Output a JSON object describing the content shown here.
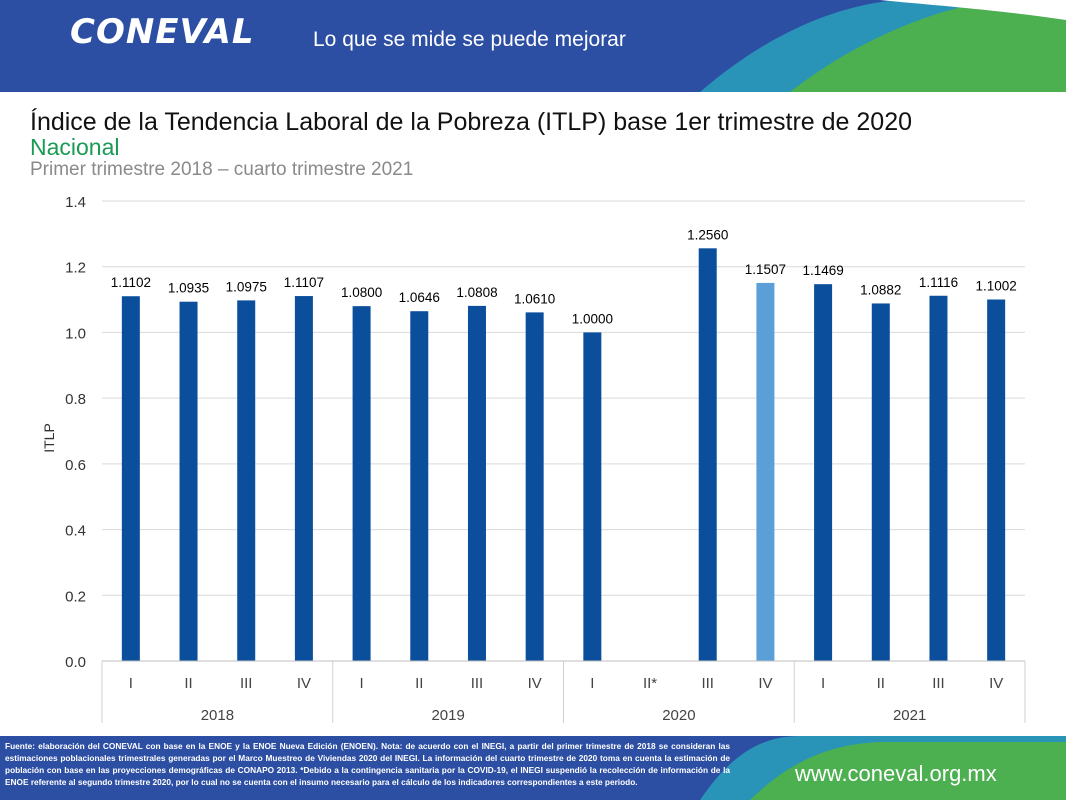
{
  "header": {
    "logo_text": "CONEVAL",
    "slogan": "Lo que se mide se puede mejorar"
  },
  "title": "Índice de la Tendencia Laboral de la Pobreza (ITLP) base 1er trimestre de 2020",
  "subtitle": "Nacional",
  "period": "Primer trimestre 2018 – cuarto trimestre 2021",
  "colors": {
    "bar": "#0b4f9c",
    "bar_highlight": "#5b9fd8",
    "header_blue": "#2c4ea3",
    "green_accent": "#4caf50",
    "subtitle_green": "#1a9a55"
  },
  "chart_data": {
    "type": "bar",
    "ylabel": "ITLP",
    "ylim": [
      0,
      1.4
    ],
    "yticks": [
      "0.0",
      "0.2",
      "0.4",
      "0.6",
      "0.8",
      "1.0",
      "1.2",
      "1.4"
    ],
    "grid": true,
    "groups": [
      "2018",
      "2019",
      "2020",
      "2021"
    ],
    "categories": [
      "I",
      "II",
      "III",
      "IV",
      "I",
      "II",
      "III",
      "IV",
      "I",
      "II*",
      "III",
      "IV",
      "I",
      "II",
      "III",
      "IV"
    ],
    "values": [
      1.1102,
      1.0935,
      1.0975,
      1.1107,
      1.08,
      1.0646,
      1.0808,
      1.061,
      1.0,
      null,
      1.256,
      1.1507,
      1.1469,
      1.0882,
      1.1116,
      1.1002
    ],
    "labels": [
      "1.1102",
      "1.0935",
      "1.0975",
      "1.1107",
      "1.0800",
      "1.0646",
      "1.0808",
      "1.0610",
      "1.0000",
      "",
      "1.2560",
      "1.1507",
      "1.1469",
      "1.0882",
      "1.1116",
      "1.1002"
    ],
    "highlight_index": 11
  },
  "footer": {
    "note": "Fuente: elaboración del CONEVAL con base en la ENOE y la ENOE Nueva Edición (ENOEN). Nota: de acuerdo con el INEGI, a partir del primer trimestre de 2018 se consideran las estimaciones poblacionales trimestrales generadas por el Marco Muestreo de Viviendas 2020 del INEGI. La información del cuarto trimestre de 2020 toma en cuenta la estimación de población con base en las proyecciones demográficas de CONAPO 2013. *Debido a la contingencia sanitaria por la COVID-19, el INEGI suspendió la recolección de información de la ENOE referente al segundo trimestre 2020, por lo cual no se cuenta con el insumo necesario para el cálculo de los indicadores correspondientes a este periodo.",
    "website": "www.coneval.org.mx"
  }
}
